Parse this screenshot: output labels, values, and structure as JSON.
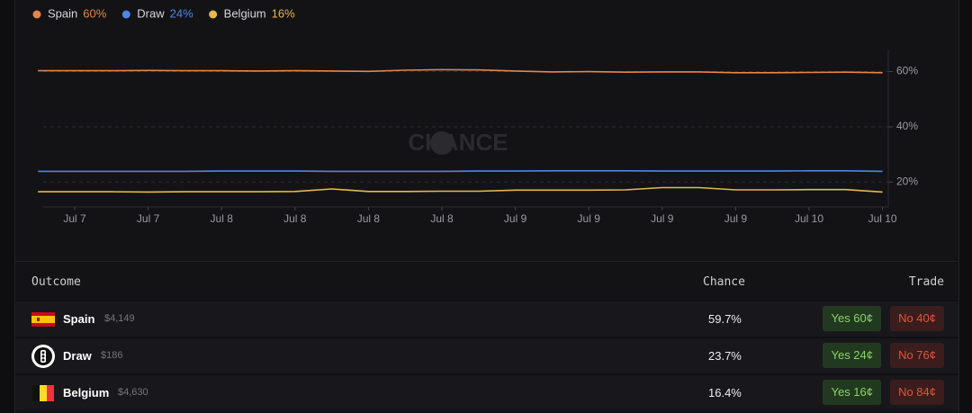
{
  "chart_data": {
    "type": "line",
    "watermark": "CHANCE",
    "categories": [
      null,
      "Jul 7",
      null,
      "Jul 7",
      null,
      "Jul 8",
      null,
      "Jul 8",
      null,
      "Jul 8",
      null,
      "Jul 8",
      null,
      "Jul 9",
      null,
      "Jul 9",
      null,
      "Jul 9",
      null,
      "Jul 9",
      null,
      "Jul 10",
      null,
      "Jul 10"
    ],
    "series": [
      {
        "name": "Spain",
        "legend_label": "60%",
        "color": "#e8844a",
        "values": [
          60.3,
          60.3,
          60.3,
          60.4,
          60.3,
          60.3,
          60.2,
          60.3,
          60.2,
          60.1,
          60.5,
          60.7,
          60.6,
          60.2,
          59.9,
          60.0,
          59.8,
          59.9,
          59.9,
          59.6,
          59.6,
          59.7,
          59.8,
          59.6
        ]
      },
      {
        "name": "Draw",
        "legend_label": "24%",
        "color": "#4f86e8",
        "values": [
          23.9,
          23.9,
          23.9,
          23.9,
          23.9,
          24.0,
          24.0,
          24.0,
          23.9,
          23.9,
          23.9,
          23.9,
          24.0,
          24.0,
          24.1,
          24.1,
          24.1,
          24.0,
          24.0,
          24.0,
          24.0,
          24.1,
          24.1,
          23.9
        ]
      },
      {
        "name": "Belgium",
        "legend_label": "16%",
        "color": "#e8b84a",
        "values": [
          16.5,
          16.5,
          16.5,
          16.4,
          16.5,
          16.5,
          16.5,
          16.6,
          17.5,
          16.6,
          16.6,
          16.7,
          16.7,
          17.1,
          17.1,
          17.1,
          17.2,
          18.0,
          18.0,
          17.2,
          17.2,
          17.3,
          17.3,
          16.4
        ]
      }
    ],
    "ylim": [
      11,
      68
    ],
    "yticks": [
      {
        "value": 20,
        "label": "20%"
      },
      {
        "value": 40,
        "label": "40%"
      },
      {
        "value": 60,
        "label": "60%"
      }
    ],
    "grid": true
  },
  "table": {
    "headers": [
      "Outcome",
      "Chance",
      "Trade"
    ],
    "rows": [
      {
        "name": "Spain",
        "volume": "$4,149",
        "chance": "59.7%",
        "yes": "Yes 60¢",
        "no": "No 40¢"
      },
      {
        "name": "Draw",
        "volume": "$186",
        "chance": "23.7%",
        "yes": "Yes 24¢",
        "no": "No 76¢"
      },
      {
        "name": "Belgium",
        "volume": "$4,630",
        "chance": "16.4%",
        "yes": "Yes 16¢",
        "no": "No 84¢"
      }
    ]
  }
}
